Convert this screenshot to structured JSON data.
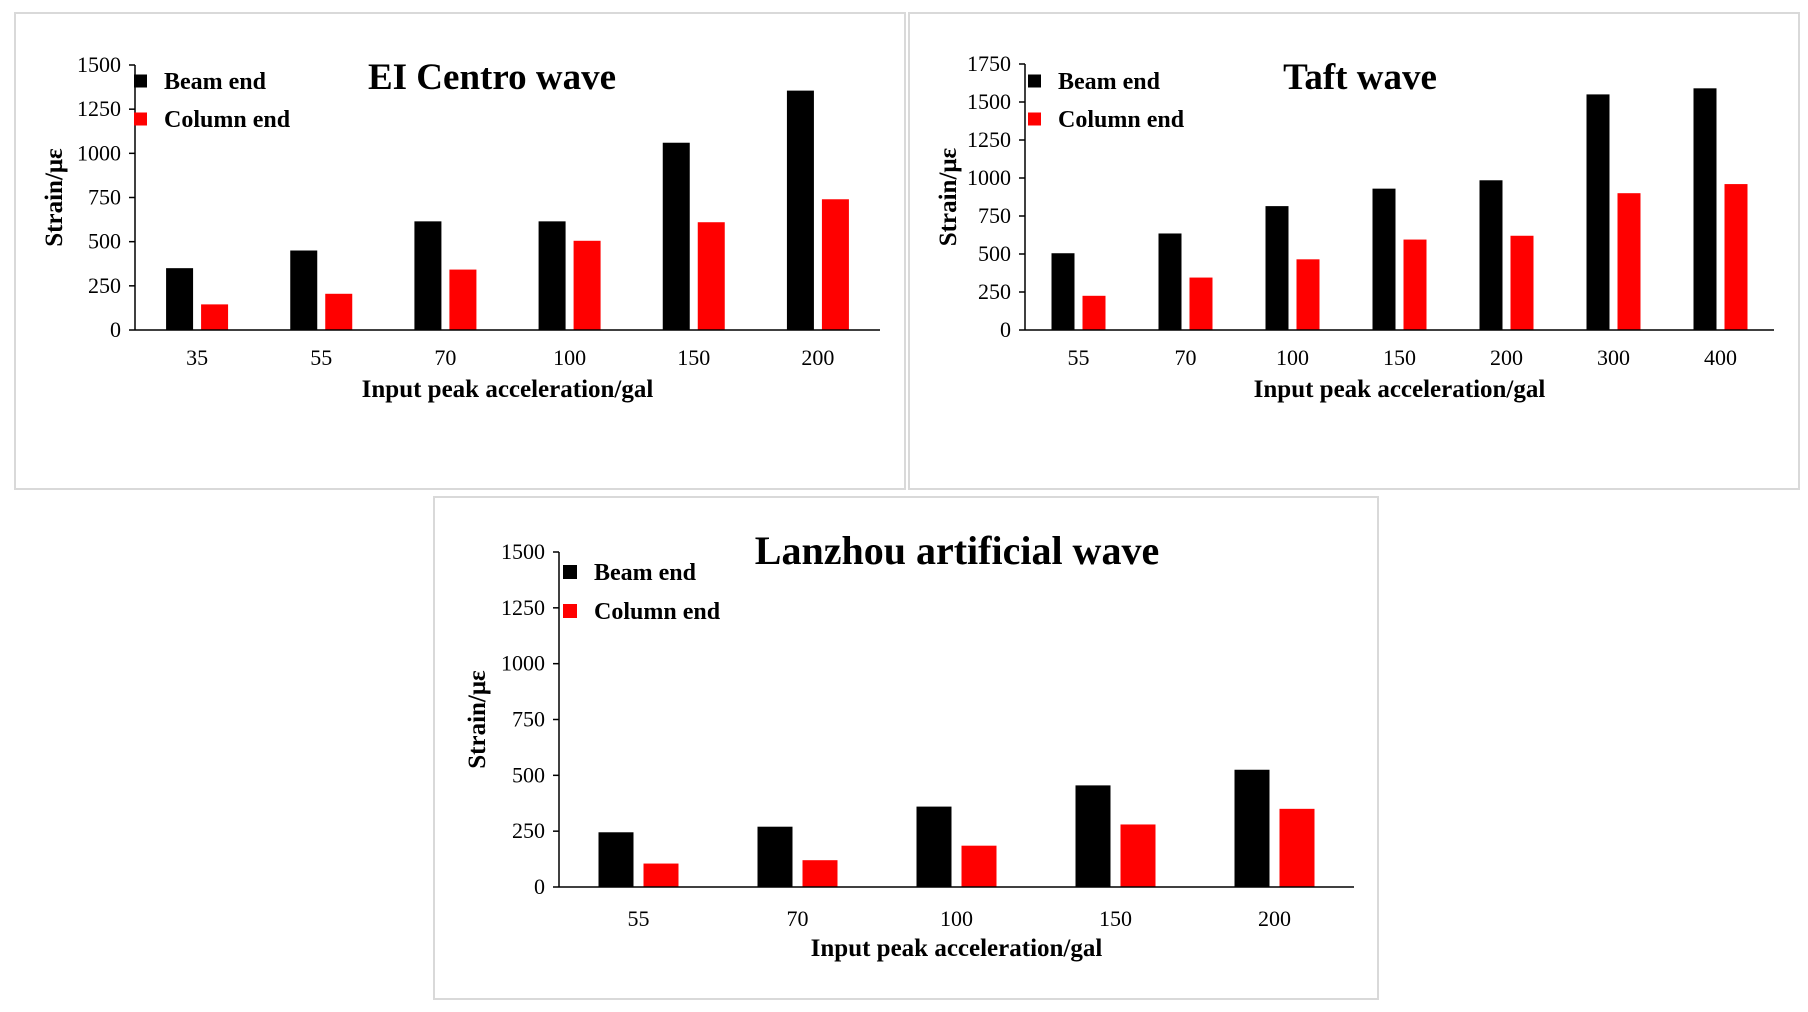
{
  "colors": {
    "beam": "#000000",
    "column": "#ff0000",
    "axis": "#000000"
  },
  "chart_data": [
    {
      "type": "bar",
      "title": "EI Centro wave",
      "xlabel": "Input peak acceleration/gal",
      "ylabel": "Strain/με",
      "ylim": [
        0,
        1500
      ],
      "yticks": [
        "0",
        "250",
        "500",
        "750",
        "1000",
        "1250",
        "1500"
      ],
      "categories": [
        "35",
        "55",
        "70",
        "100",
        "150",
        "200"
      ],
      "series": [
        {
          "name": "Beam end",
          "values": [
            350,
            450,
            615,
            615,
            1060,
            1355
          ]
        },
        {
          "name": "Column end",
          "values": [
            145,
            205,
            342,
            505,
            610,
            740
          ]
        }
      ],
      "legend": "top-left",
      "grid": false
    },
    {
      "type": "bar",
      "title": "Taft wave",
      "xlabel": "Input peak acceleration/gal",
      "ylabel": "Strain/με",
      "ylim": [
        0,
        1750
      ],
      "yticks": [
        "0",
        "250",
        "500",
        "750",
        "1000",
        "1250",
        "1500",
        "1750"
      ],
      "categories": [
        "55",
        "70",
        "100",
        "150",
        "200",
        "300",
        "400"
      ],
      "series": [
        {
          "name": "Beam end",
          "values": [
            505,
            635,
            815,
            930,
            985,
            1550,
            1590
          ]
        },
        {
          "name": "Column end",
          "values": [
            225,
            345,
            465,
            595,
            620,
            900,
            960
          ]
        }
      ],
      "legend": "top-left",
      "grid": false
    },
    {
      "type": "bar",
      "title": "Lanzhou artificial wave",
      "xlabel": "Input peak acceleration/gal",
      "ylabel": "Strain/με",
      "ylim": [
        0,
        1500
      ],
      "yticks": [
        "0",
        "250",
        "500",
        "750",
        "1000",
        "1250",
        "1500"
      ],
      "categories": [
        "55",
        "70",
        "100",
        "150",
        "200"
      ],
      "series": [
        {
          "name": "Beam end",
          "values": [
            245,
            270,
            360,
            455,
            525
          ]
        },
        {
          "name": "Column end",
          "values": [
            105,
            120,
            185,
            280,
            350
          ]
        }
      ],
      "legend": "top-left",
      "grid": false
    }
  ]
}
